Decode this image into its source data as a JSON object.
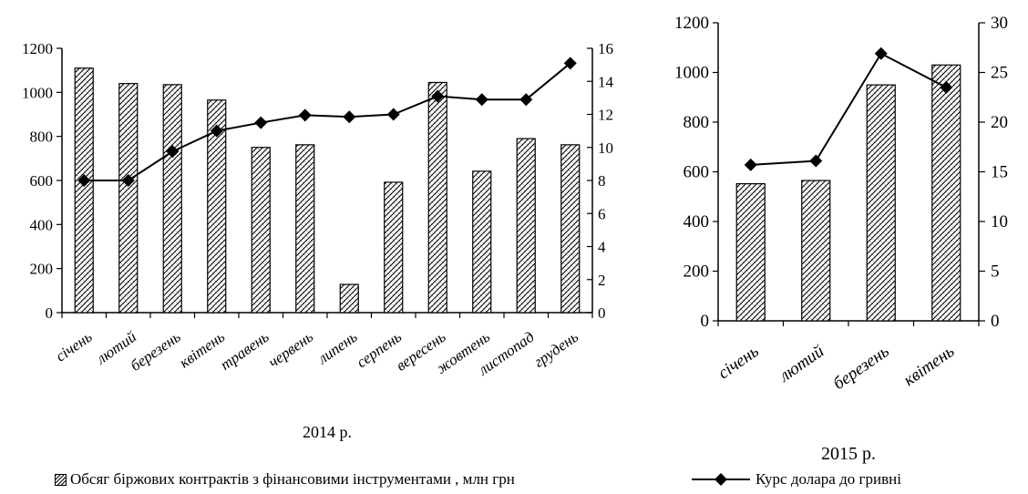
{
  "chart_data": [
    {
      "type": "bar+line",
      "caption": "2014 р.",
      "categories": [
        "січень",
        "лютий",
        "березень",
        "квітень",
        "травень",
        "червень",
        "липень",
        "серпень",
        "вересень",
        "жовтень",
        "листопад",
        "грудень"
      ],
      "series": [
        {
          "name": "Обсяг біржових контрактів з фінансовими інструментами , млн грн",
          "kind": "bar",
          "axis": "left",
          "values": [
            1110,
            1040,
            1035,
            965,
            750,
            762,
            128,
            592,
            1045,
            642,
            790,
            762
          ]
        },
        {
          "name": "Курс долара до гривні",
          "kind": "line",
          "axis": "right",
          "values": [
            8.0,
            8.0,
            9.75,
            11.0,
            11.5,
            11.95,
            11.85,
            12.0,
            13.1,
            12.9,
            12.9,
            15.1
          ]
        }
      ],
      "yleft": {
        "min": 0,
        "max": 1200,
        "ticks": [
          0,
          200,
          400,
          600,
          800,
          1000,
          1200
        ]
      },
      "yright": {
        "min": 0,
        "max": 16,
        "ticks": [
          0,
          2,
          4,
          6,
          8,
          10,
          12,
          14,
          16
        ]
      }
    },
    {
      "type": "bar+line",
      "caption": "2015 р.",
      "categories": [
        "січень",
        "лютий",
        "березень",
        "квітень"
      ],
      "series": [
        {
          "name": "Обсяг біржових контрактів з фінансовими інструментами , млн грн",
          "kind": "bar",
          "axis": "left",
          "values": [
            552,
            565,
            950,
            1030
          ]
        },
        {
          "name": "Курс долара до гривні",
          "kind": "line",
          "axis": "right",
          "values": [
            15.7,
            16.1,
            26.9,
            23.5
          ]
        }
      ],
      "yleft": {
        "min": 0,
        "max": 1200,
        "ticks": [
          0,
          200,
          400,
          600,
          800,
          1000,
          1200
        ]
      },
      "yright": {
        "min": 0,
        "max": 30,
        "ticks": [
          0,
          5,
          10,
          15,
          20,
          25,
          30
        ]
      }
    }
  ],
  "legend": {
    "bar_label": "Обсяг біржових контрактів з фінансовими інструментами , млн грн",
    "line_label": "Курс долара до гривні"
  },
  "style": {
    "bar_fill": "hatched",
    "line_color": "#000000",
    "marker": "diamond"
  }
}
